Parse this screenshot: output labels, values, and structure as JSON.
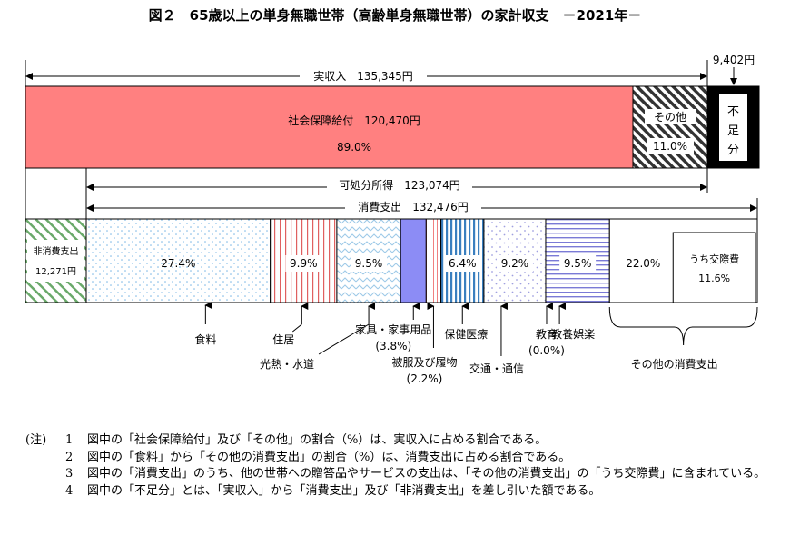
{
  "title": "図２　65歳以上の単身無職世帯（高齢単身無職世帯）の家計収支　－2021年－",
  "chart_data": {
    "type": "bar",
    "title": "図２　65歳以上の単身無職世帯（高齢単身無職世帯）の家計収支　－2021年－",
    "income_bar": {
      "label": "実収入",
      "value_text": "135,345円",
      "value": 135345,
      "segments": [
        {
          "name": "社会保障給付",
          "value_text": "120,470円",
          "value": 120470,
          "pct": 89.0,
          "pct_text": "89.0%",
          "color": "#ff8080"
        },
        {
          "name": "その他",
          "value": 14875,
          "pct": 11.0,
          "pct_text": "11.0%",
          "color": "#555555"
        }
      ],
      "shortfall": {
        "name": "不足分",
        "vertical_text": "不足分",
        "value_text": "9,402円",
        "value": 9402,
        "color": "#000000"
      }
    },
    "disposable_income": {
      "label": "可処分所得",
      "value_text": "123,074円",
      "value": 123074
    },
    "expenditure_bar": {
      "label": "消費支出",
      "value_text": "132,476円",
      "value": 132476,
      "non_consumption": {
        "name": "非消費支出",
        "value_text": "12,271円",
        "value": 12271
      },
      "segments": [
        {
          "name": "食料",
          "pct": 27.4,
          "pct_text": "27.4%"
        },
        {
          "name": "住居",
          "pct": 9.9,
          "pct_text": "9.9%"
        },
        {
          "name": "光熱・水道",
          "pct": 9.5,
          "pct_text": "9.5%"
        },
        {
          "name": "家具・家事用品",
          "pct": 3.8,
          "pct_text": "(3.8%)"
        },
        {
          "name": "被服及び履物",
          "pct": 2.2,
          "pct_text": "(2.2%)"
        },
        {
          "name": "保健医療",
          "pct": 6.4,
          "pct_text": "6.4%"
        },
        {
          "name": "交通・通信",
          "pct": 9.2,
          "pct_text": "9.2%"
        },
        {
          "name": "教育",
          "pct": 0.0,
          "pct_text": "(0.0%)"
        },
        {
          "name": "教養娯楽",
          "pct": 9.5,
          "pct_text": "9.5%"
        },
        {
          "name": "その他の消費支出",
          "pct": 22.0,
          "pct_text": "22.0%"
        }
      ],
      "sub_item": {
        "name": "うち交際費",
        "pct": 11.6,
        "pct_text": "11.6%"
      }
    }
  },
  "notes": {
    "head": "(注)",
    "items": [
      {
        "num": "1",
        "text": "図中の「社会保障給付」及び「その他」の割合（%）は、実収入に占める割合である。"
      },
      {
        "num": "2",
        "text": "図中の「食料」から「その他の消費支出」の割合（%）は、消費支出に占める割合である。"
      },
      {
        "num": "3",
        "text": "図中の「消費支出」のうち、他の世帯への贈答品やサービスの支出は、「その他の消費支出」の「うち交際費」に含まれている。"
      },
      {
        "num": "4",
        "text": "図中の「不足分」とは、「実収入」から「消費支出」及び「非消費支出」を差し引いた額である。"
      }
    ]
  }
}
